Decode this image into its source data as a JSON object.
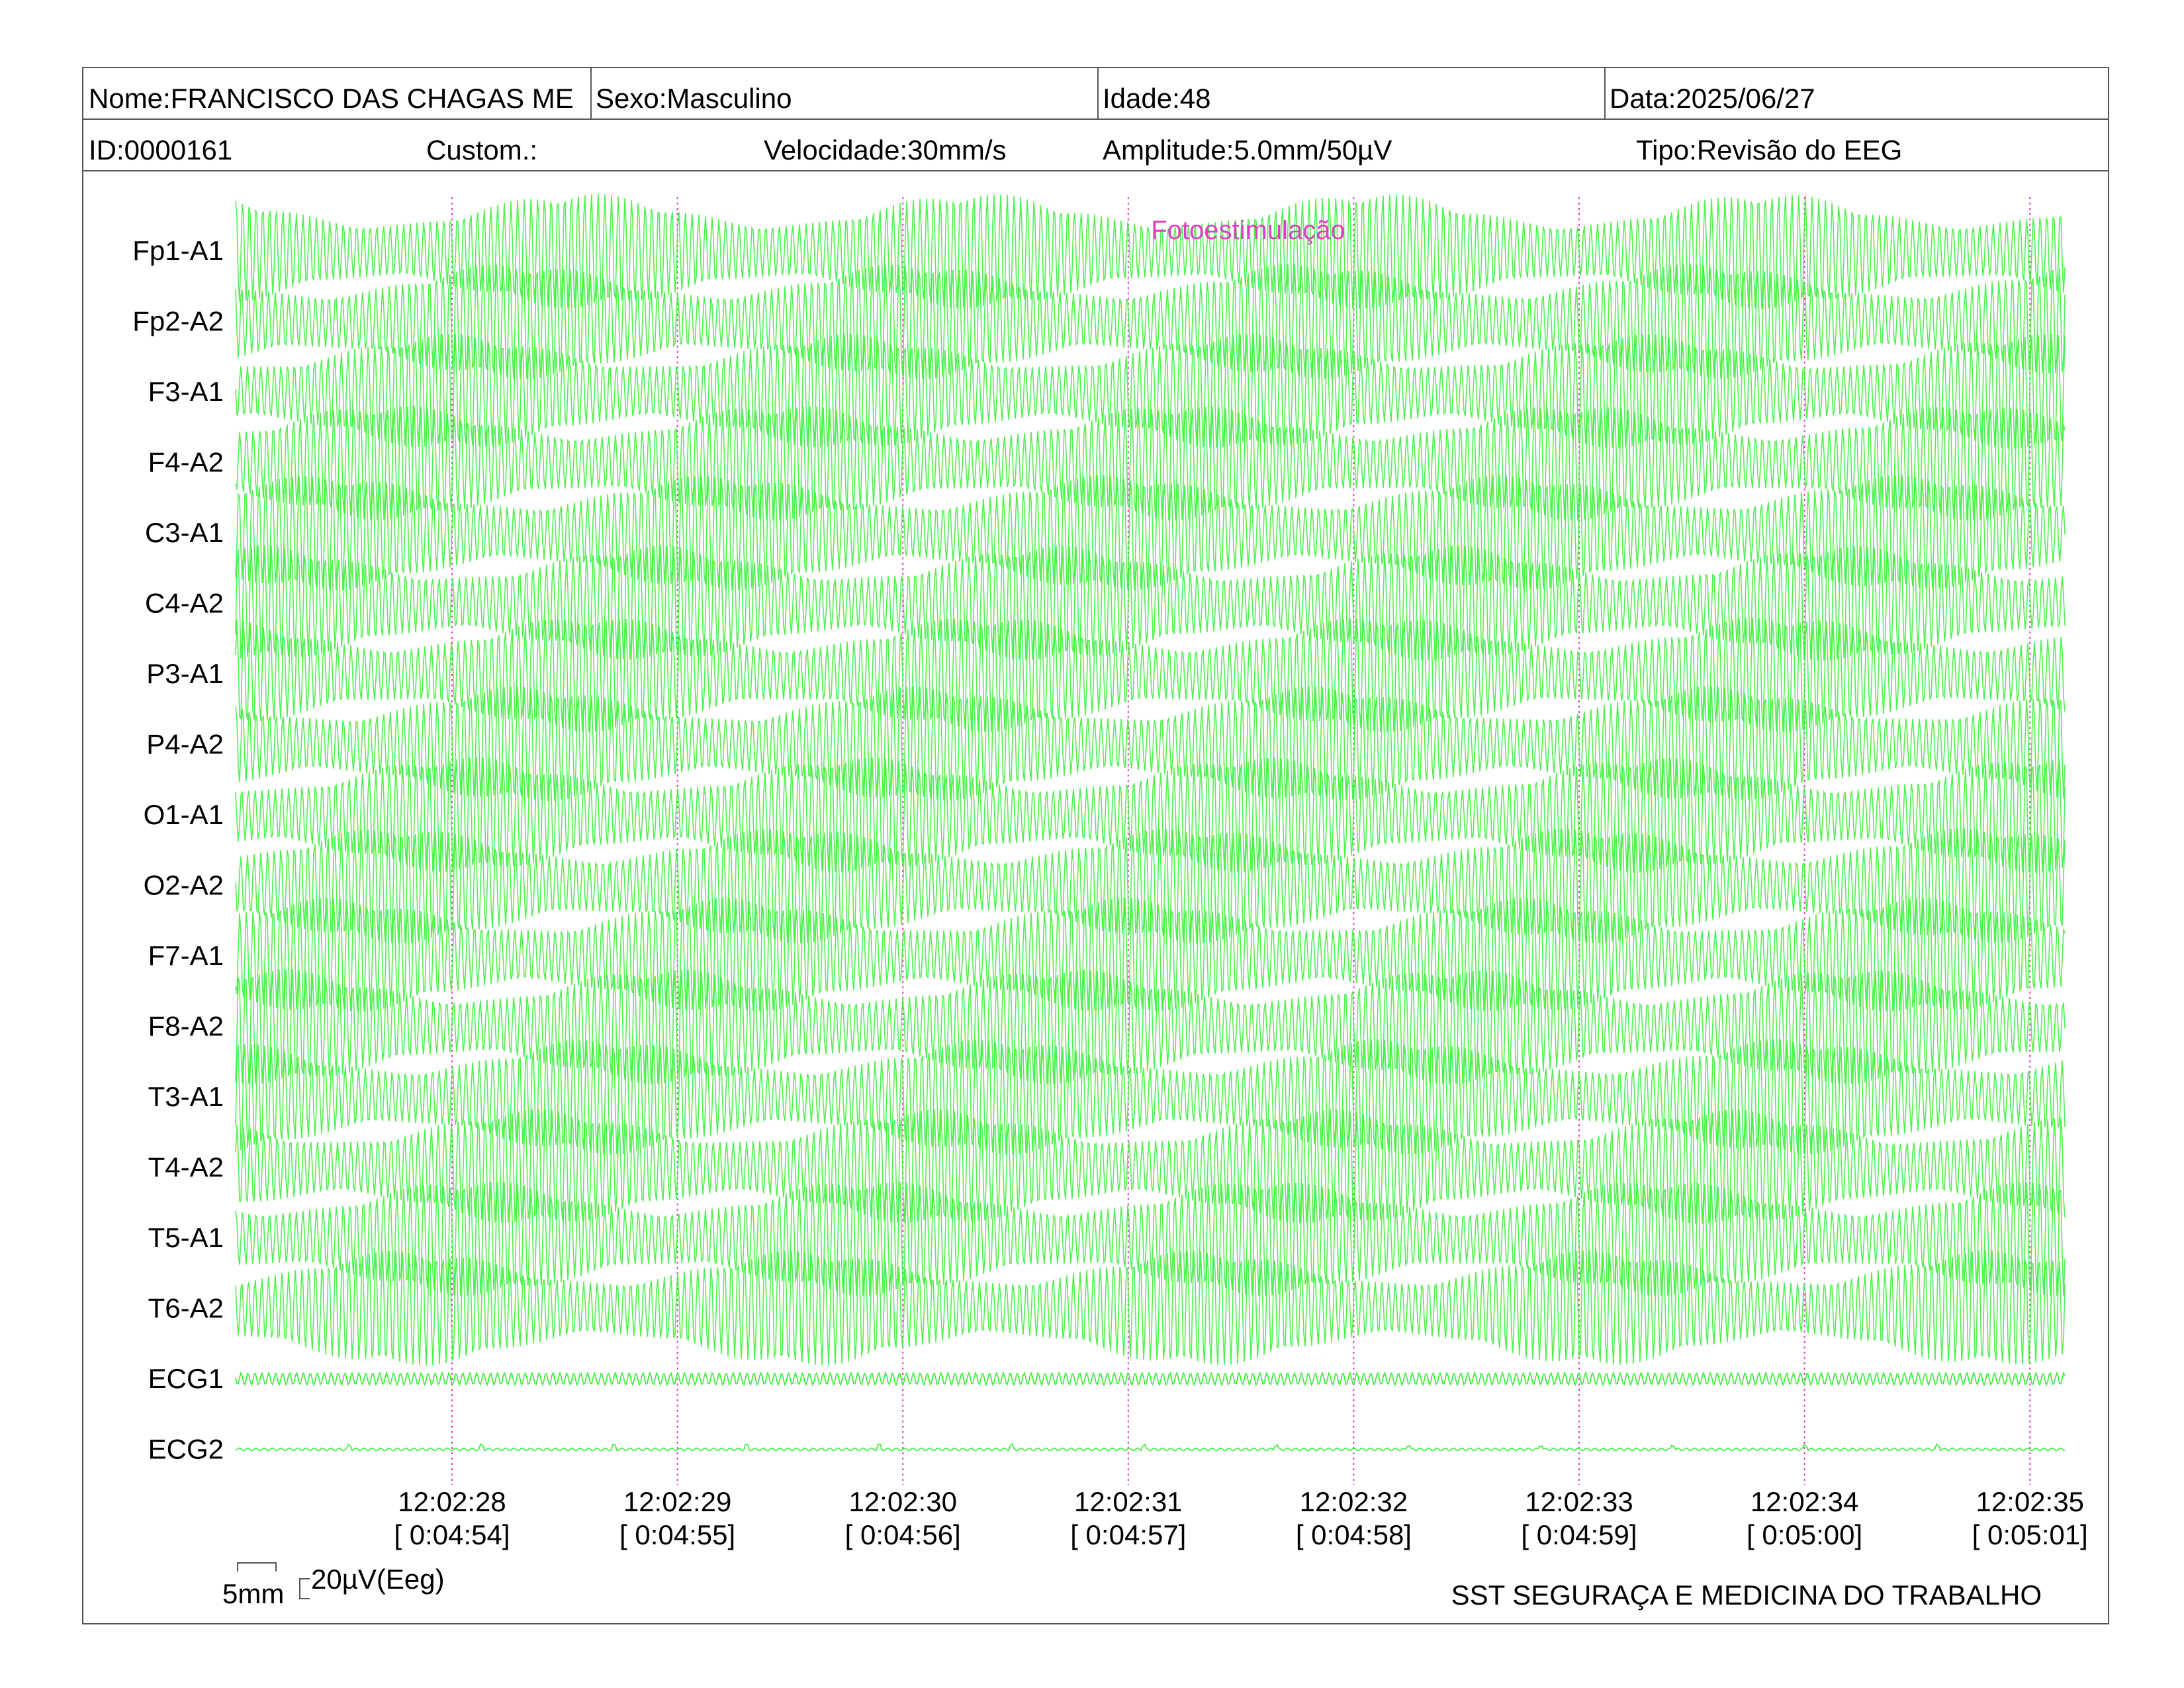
{
  "header": {
    "row1": {
      "name": "Nome:FRANCISCO DAS CHAGAS ME",
      "sex": "Sexo:Masculino",
      "age": "Idade:48",
      "date": "Data:2025/06/27"
    },
    "row2": {
      "id": "ID:0000161",
      "custom": "Custom.:",
      "speed": "Velocidade:30mm/s",
      "amplitude": "Amplitude:5.0mm/50µV",
      "type": "Tipo:Revisão do EEG"
    }
  },
  "channels": [
    "Fp1-A1",
    "Fp2-A2",
    "F3-A1",
    "F4-A2",
    "C3-A1",
    "C4-A2",
    "P3-A1",
    "P4-A2",
    "O1-A1",
    "O2-A2",
    "F7-A1",
    "F8-A2",
    "T3-A1",
    "T4-A2",
    "T5-A1",
    "T6-A2",
    "ECG1",
    "ECG2"
  ],
  "event": {
    "label": "Fotoestimulação",
    "color": "#e040c0"
  },
  "time_marks": [
    {
      "clock": "12:02:28",
      "elapsed": "[ 0:04:54]"
    },
    {
      "clock": "12:02:29",
      "elapsed": "[ 0:04:55]"
    },
    {
      "clock": "12:02:30",
      "elapsed": "[ 0:04:56]"
    },
    {
      "clock": "12:02:31",
      "elapsed": "[ 0:04:57]"
    },
    {
      "clock": "12:02:32",
      "elapsed": "[ 0:04:58]"
    },
    {
      "clock": "12:02:33",
      "elapsed": "[ 0:04:59]"
    },
    {
      "clock": "12:02:34",
      "elapsed": "[ 0:05:00]"
    },
    {
      "clock": "12:02:35",
      "elapsed": "[ 0:05:01]"
    }
  ],
  "scale": {
    "time": "5mm",
    "amplitude": "20µV(Eeg)"
  },
  "footer": {
    "company": "SST SEGURAÇA E MEDICINA DO TRABALHO"
  },
  "colors": {
    "trace": "#33ee33",
    "marker": "#e040c0",
    "border": "#555555"
  }
}
